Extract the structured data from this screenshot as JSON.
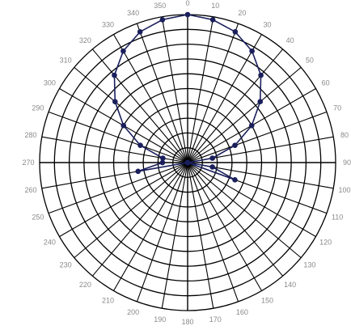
{
  "chart_data": {
    "type": "polar-line",
    "theta_ticks": [
      "0",
      "10",
      "20",
      "30",
      "40",
      "50",
      "60",
      "70",
      "80",
      "90",
      "100",
      "110",
      "120",
      "130",
      "140",
      "150",
      "160",
      "170",
      "180",
      "190",
      "200",
      "210",
      "220",
      "230",
      "240",
      "250",
      "260",
      "270",
      "280",
      "290",
      "300",
      "310",
      "320",
      "330",
      "340",
      "350"
    ],
    "rlim": [
      0,
      1
    ],
    "ring_count": 10,
    "grid": true,
    "series": [
      {
        "theta": [
          0,
          10,
          20,
          30,
          40,
          50,
          60,
          70,
          80,
          90,
          100,
          110,
          120,
          130,
          140,
          150,
          160,
          170,
          180,
          190,
          200,
          210,
          220,
          230,
          240,
          250,
          260,
          270,
          280,
          290,
          300,
          310,
          320,
          330,
          340,
          350
        ],
        "r": [
          1.0,
          0.98,
          0.94,
          0.87,
          0.77,
          0.64,
          0.5,
          0.34,
          0.17,
          0.0,
          0.17,
          0.34,
          0.0,
          0.0,
          0.0,
          0.0,
          0.0,
          0.0,
          0.0,
          0.0,
          0.0,
          0.0,
          0.0,
          0.0,
          0.0,
          0.0,
          0.34,
          0.17,
          0.17,
          0.34,
          0.5,
          0.64,
          0.77,
          0.87,
          0.94,
          0.98
        ]
      }
    ]
  },
  "colors": {
    "series": "#1a1f5c",
    "grid": "#000000",
    "labels": "#8a8a8a"
  }
}
